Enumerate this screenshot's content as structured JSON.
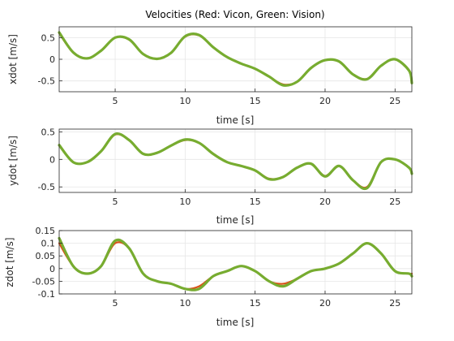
{
  "title": "Velocities (Red: Vicon, Green: Vision)",
  "colors": {
    "vicon": "#d95319",
    "vision": "#77ac30",
    "grid": "#e6e6e6",
    "axis": "#262626"
  },
  "chart_data": [
    {
      "type": "line",
      "title": "Velocities (Red: Vicon, Green: Vision)",
      "xlabel": "time [s]",
      "ylabel": "xdot [m/s]",
      "xlim": [
        1,
        26.2
      ],
      "ylim": [
        -0.75,
        0.75
      ],
      "xticks": [
        5,
        10,
        15,
        20,
        25
      ],
      "yticks": [
        -0.5,
        0,
        0.5
      ],
      "ytick_labels": [
        "-0.5",
        "0",
        "0.5"
      ],
      "grid": true,
      "series": [
        {
          "key": "vicon",
          "x": [
            1,
            2,
            3,
            4,
            5,
            6,
            7,
            8,
            9,
            10,
            11,
            12,
            13,
            14,
            15,
            16,
            17,
            18,
            19,
            20,
            21,
            22,
            23,
            24,
            25,
            26,
            26.2
          ],
          "y": [
            0.6,
            0.15,
            0.02,
            0.2,
            0.5,
            0.45,
            0.12,
            0.01,
            0.15,
            0.52,
            0.55,
            0.28,
            0.05,
            -0.1,
            -0.22,
            -0.4,
            -0.58,
            -0.52,
            -0.2,
            -0.02,
            -0.05,
            -0.35,
            -0.45,
            -0.15,
            0,
            -0.25,
            -0.52
          ]
        },
        {
          "key": "vision",
          "x": [
            1,
            2,
            3,
            4,
            5,
            6,
            7,
            8,
            9,
            10,
            11,
            12,
            13,
            14,
            15,
            16,
            17,
            18,
            19,
            20,
            21,
            22,
            23,
            24,
            25,
            26,
            26.2
          ],
          "y": [
            0.62,
            0.16,
            0.02,
            0.2,
            0.5,
            0.46,
            0.12,
            0.01,
            0.15,
            0.53,
            0.56,
            0.28,
            0.05,
            -0.1,
            -0.22,
            -0.4,
            -0.6,
            -0.52,
            -0.2,
            -0.02,
            -0.05,
            -0.35,
            -0.46,
            -0.15,
            0,
            -0.26,
            -0.55
          ]
        }
      ]
    },
    {
      "type": "line",
      "xlabel": "time [s]",
      "ylabel": "ydot [m/s]",
      "xlim": [
        1,
        26.2
      ],
      "ylim": [
        -0.6,
        0.55
      ],
      "xticks": [
        5,
        10,
        15,
        20,
        25
      ],
      "yticks": [
        -0.5,
        0,
        0.5
      ],
      "ytick_labels": [
        "-0.5",
        "0",
        "0.5"
      ],
      "grid": true,
      "series": [
        {
          "key": "vicon",
          "x": [
            1,
            2,
            3,
            4,
            5,
            6,
            7,
            8,
            9,
            10,
            11,
            12,
            13,
            14,
            15,
            16,
            17,
            18,
            19,
            20,
            21,
            22,
            23,
            24,
            25,
            26,
            26.2
          ],
          "y": [
            0.25,
            -0.05,
            -0.05,
            0.15,
            0.45,
            0.35,
            0.1,
            0.12,
            0.25,
            0.35,
            0.3,
            0.1,
            -0.05,
            -0.12,
            -0.2,
            -0.35,
            -0.32,
            -0.15,
            -0.08,
            -0.3,
            -0.12,
            -0.38,
            -0.5,
            -0.05,
            0,
            -0.15,
            -0.25
          ]
        },
        {
          "key": "vision",
          "x": [
            1,
            2,
            3,
            4,
            5,
            6,
            7,
            8,
            9,
            10,
            11,
            12,
            13,
            14,
            15,
            16,
            17,
            18,
            19,
            20,
            21,
            22,
            23,
            24,
            25,
            26,
            26.2
          ],
          "y": [
            0.26,
            -0.05,
            -0.05,
            0.15,
            0.46,
            0.35,
            0.1,
            0.12,
            0.25,
            0.36,
            0.3,
            0.1,
            -0.05,
            -0.12,
            -0.2,
            -0.36,
            -0.32,
            -0.15,
            -0.08,
            -0.31,
            -0.12,
            -0.38,
            -0.52,
            -0.05,
            0,
            -0.15,
            -0.26
          ]
        }
      ]
    },
    {
      "type": "line",
      "xlabel": "time [s]",
      "ylabel": "zdot [m/s]",
      "xlim": [
        1,
        26.2
      ],
      "ylim": [
        -0.1,
        0.15
      ],
      "xticks": [
        5,
        10,
        15,
        20,
        25
      ],
      "yticks": [
        -0.1,
        -0.05,
        0,
        0.05,
        0.1,
        0.15
      ],
      "ytick_labels": [
        "-0.1",
        "-0.05",
        "0",
        "0.05",
        "0.1",
        "0.15"
      ],
      "grid": true,
      "series": [
        {
          "key": "vicon",
          "x": [
            1,
            2,
            3,
            4,
            5,
            6,
            7,
            8,
            9,
            10,
            11,
            12,
            13,
            14,
            15,
            16,
            17,
            18,
            19,
            20,
            21,
            22,
            23,
            24,
            25,
            26,
            26.2
          ],
          "y": [
            0.1,
            0.01,
            -0.02,
            0.01,
            0.1,
            0.08,
            -0.02,
            -0.05,
            -0.06,
            -0.08,
            -0.07,
            -0.03,
            -0.01,
            0.01,
            -0.01,
            -0.05,
            -0.06,
            -0.04,
            -0.01,
            0,
            0.02,
            0.06,
            0.1,
            0.06,
            -0.01,
            -0.02,
            -0.02
          ]
        },
        {
          "key": "vision",
          "x": [
            1,
            2,
            3,
            4,
            5,
            6,
            7,
            8,
            9,
            10,
            11,
            12,
            13,
            14,
            15,
            16,
            17,
            18,
            19,
            20,
            21,
            22,
            23,
            24,
            25,
            26,
            26.2
          ],
          "y": [
            0.12,
            0.01,
            -0.02,
            0.01,
            0.11,
            0.08,
            -0.02,
            -0.05,
            -0.06,
            -0.08,
            -0.08,
            -0.03,
            -0.01,
            0.01,
            -0.01,
            -0.05,
            -0.07,
            -0.04,
            -0.01,
            0,
            0.02,
            0.06,
            0.1,
            0.06,
            -0.01,
            -0.02,
            -0.03
          ]
        }
      ]
    }
  ]
}
